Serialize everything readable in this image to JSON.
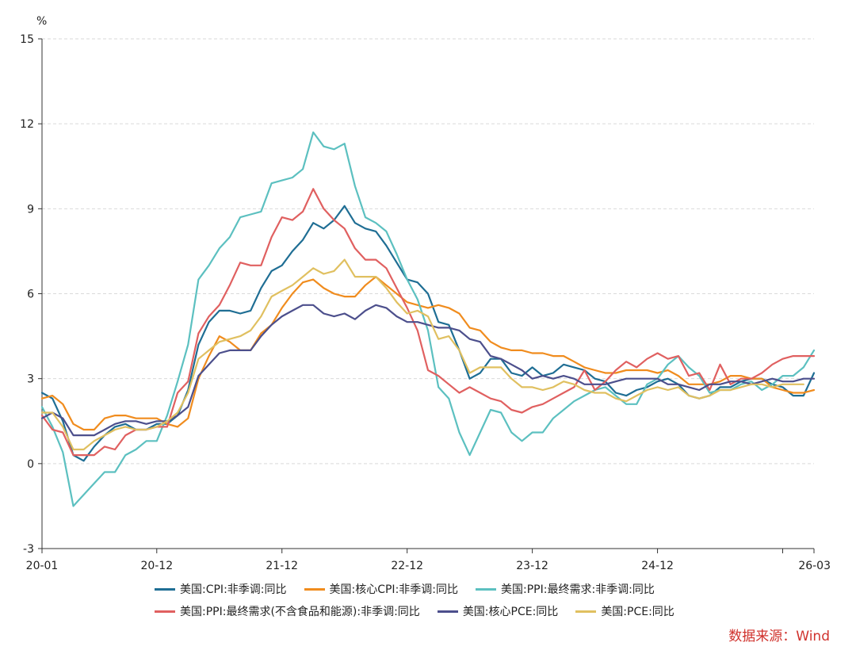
{
  "chart_data": {
    "type": "line",
    "ylabel": "%",
    "ylim": [
      -3,
      15
    ],
    "yticks": [
      -3,
      0,
      3,
      6,
      9,
      12,
      15
    ],
    "x_start": "2020-01",
    "x_end": "2026-03",
    "xticks": [
      "20-01",
      "20-12",
      "21-12",
      "22-12",
      "23-12",
      "24-12",
      "26-03"
    ],
    "grid": "horizontal dashed",
    "legend_position": "bottom",
    "series": [
      {
        "name": "美国:CPI:非季调:同比",
        "color": "#1f6e94",
        "values": [
          2.5,
          2.3,
          1.5,
          0.3,
          0.1,
          0.6,
          1.0,
          1.3,
          1.4,
          1.2,
          1.2,
          1.4,
          1.4,
          1.7,
          2.6,
          4.2,
          5.0,
          5.4,
          5.4,
          5.3,
          5.4,
          6.2,
          6.8,
          7.0,
          7.5,
          7.9,
          8.5,
          8.3,
          8.6,
          9.1,
          8.5,
          8.3,
          8.2,
          7.7,
          7.1,
          6.5,
          6.4,
          6.0,
          5.0,
          4.9,
          4.0,
          3.0,
          3.2,
          3.7,
          3.7,
          3.2,
          3.1,
          3.4,
          3.1,
          3.2,
          3.5,
          3.4,
          3.3,
          3.0,
          2.9,
          2.5,
          2.4,
          2.6,
          2.7,
          2.9,
          3.0,
          2.8,
          2.4,
          2.3,
          2.4,
          2.7,
          2.7,
          2.9,
          3.0,
          3.0,
          2.8,
          2.7,
          2.4,
          2.4,
          3.2
        ]
      },
      {
        "name": "美国:核心CPI:非季调:同比",
        "color": "#f08c1e",
        "values": [
          2.3,
          2.4,
          2.1,
          1.4,
          1.2,
          1.2,
          1.6,
          1.7,
          1.7,
          1.6,
          1.6,
          1.6,
          1.4,
          1.3,
          1.6,
          3.0,
          3.8,
          4.5,
          4.3,
          4.0,
          4.0,
          4.6,
          4.9,
          5.5,
          6.0,
          6.4,
          6.5,
          6.2,
          6.0,
          5.9,
          5.9,
          6.3,
          6.6,
          6.3,
          6.0,
          5.7,
          5.6,
          5.5,
          5.6,
          5.5,
          5.3,
          4.8,
          4.7,
          4.3,
          4.1,
          4.0,
          4.0,
          3.9,
          3.9,
          3.8,
          3.8,
          3.6,
          3.4,
          3.3,
          3.2,
          3.2,
          3.3,
          3.3,
          3.3,
          3.2,
          3.3,
          3.1,
          2.8,
          2.8,
          2.8,
          2.9,
          3.1,
          3.1,
          3.0,
          3.0,
          2.7,
          2.6,
          2.5,
          2.5,
          2.6
        ]
      },
      {
        "name": "美国:PPI:最终需求:非季调:同比",
        "color": "#5cc0c0",
        "values": [
          2.0,
          1.3,
          0.4,
          -1.5,
          -1.1,
          -0.7,
          -0.3,
          -0.3,
          0.3,
          0.5,
          0.8,
          0.8,
          1.7,
          2.9,
          4.2,
          6.5,
          7.0,
          7.6,
          8.0,
          8.7,
          8.8,
          8.9,
          9.9,
          10.0,
          10.1,
          10.4,
          11.7,
          11.2,
          11.1,
          11.3,
          9.8,
          8.7,
          8.5,
          8.2,
          7.4,
          6.5,
          5.8,
          4.7,
          2.7,
          2.3,
          1.1,
          0.3,
          1.1,
          1.9,
          1.8,
          1.1,
          0.8,
          1.1,
          1.1,
          1.6,
          1.9,
          2.2,
          2.4,
          2.6,
          2.7,
          2.4,
          2.1,
          2.1,
          2.8,
          3.0,
          3.5,
          3.8,
          3.4,
          3.1,
          2.5,
          2.6,
          2.6,
          2.8,
          2.9,
          2.6,
          2.8,
          3.1,
          3.1,
          3.4,
          4.0
        ]
      },
      {
        "name": "美国:PPI:最终需求(不含食品和能源):非季调:同比",
        "color": "#e06060",
        "values": [
          1.7,
          1.2,
          1.1,
          0.3,
          0.3,
          0.3,
          0.6,
          0.5,
          1.0,
          1.2,
          1.2,
          1.3,
          1.3,
          2.5,
          2.9,
          4.6,
          5.2,
          5.6,
          6.3,
          7.1,
          7.0,
          7.0,
          8.0,
          8.7,
          8.6,
          8.9,
          9.7,
          9.0,
          8.6,
          8.3,
          7.6,
          7.2,
          7.2,
          6.9,
          6.2,
          5.5,
          4.7,
          3.3,
          3.1,
          2.8,
          2.5,
          2.7,
          2.5,
          2.3,
          2.2,
          1.9,
          1.8,
          2.0,
          2.1,
          2.3,
          2.5,
          2.7,
          3.3,
          2.6,
          2.9,
          3.3,
          3.6,
          3.4,
          3.7,
          3.9,
          3.7,
          3.8,
          3.1,
          3.2,
          2.6,
          3.5,
          2.8,
          3.0,
          3.0,
          3.2,
          3.5,
          3.7,
          3.8,
          3.8,
          3.8
        ]
      },
      {
        "name": "美国:核心PCE:同比",
        "color": "#4c4f8c",
        "values": [
          1.6,
          1.8,
          1.6,
          1.0,
          1.0,
          1.0,
          1.2,
          1.4,
          1.5,
          1.5,
          1.4,
          1.5,
          1.5,
          1.7,
          2.0,
          3.1,
          3.5,
          3.9,
          4.0,
          4.0,
          4.0,
          4.5,
          4.9,
          5.2,
          5.4,
          5.6,
          5.6,
          5.3,
          5.2,
          5.3,
          5.1,
          5.4,
          5.6,
          5.5,
          5.2,
          5.0,
          5.0,
          4.9,
          4.8,
          4.8,
          4.7,
          4.4,
          4.3,
          3.8,
          3.7,
          3.5,
          3.3,
          3.0,
          3.1,
          3.0,
          3.1,
          3.0,
          2.8,
          2.8,
          2.8,
          2.9,
          3.0,
          3.0,
          3.0,
          3.0,
          2.8,
          2.8,
          2.7,
          2.6,
          2.8,
          2.8,
          2.9,
          2.9,
          2.8,
          2.9,
          3.0,
          2.9,
          2.9,
          3.0,
          3.0
        ]
      },
      {
        "name": "美国:PCE:同比",
        "color": "#e0c060",
        "values": [
          1.8,
          1.8,
          1.3,
          0.5,
          0.5,
          0.8,
          1.0,
          1.2,
          1.3,
          1.2,
          1.2,
          1.3,
          1.5,
          1.8,
          2.5,
          3.7,
          4.0,
          4.3,
          4.4,
          4.5,
          4.7,
          5.2,
          5.9,
          6.1,
          6.3,
          6.6,
          6.9,
          6.7,
          6.8,
          7.2,
          6.6,
          6.6,
          6.6,
          6.2,
          5.7,
          5.3,
          5.4,
          5.2,
          4.4,
          4.5,
          4.0,
          3.2,
          3.4,
          3.4,
          3.4,
          3.0,
          2.7,
          2.7,
          2.6,
          2.7,
          2.9,
          2.8,
          2.6,
          2.5,
          2.5,
          2.3,
          2.2,
          2.4,
          2.6,
          2.7,
          2.6,
          2.7,
          2.4,
          2.3,
          2.4,
          2.6,
          2.6,
          2.7,
          2.8,
          2.8,
          2.7,
          2.8,
          2.8,
          2.8,
          null
        ]
      }
    ]
  },
  "source_text": "数据来源：Wind"
}
